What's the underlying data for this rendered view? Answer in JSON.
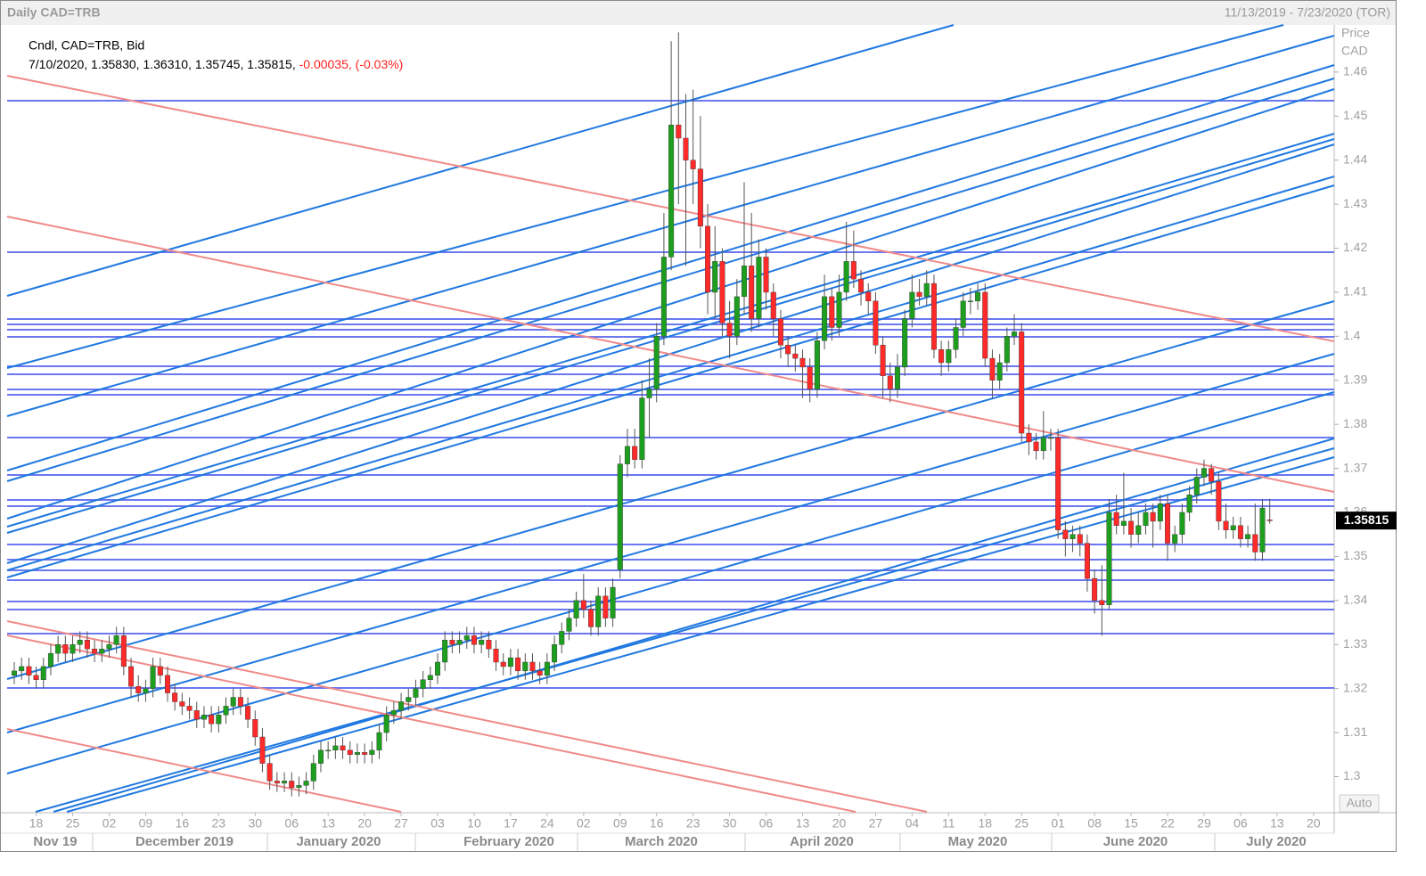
{
  "chart_data": {
    "type": "candlestick",
    "title": "Daily CAD=TRB",
    "date_range": "11/13/2019 - 7/23/2020 (TOR)",
    "legend_label": "Cndl, CAD=TRB, Bid",
    "info_text": "7/10/2020, 1.35830, 1.36310, 1.35745, 1.35815, ",
    "info_change": "-0.00035, (-0.03%)",
    "y_axis_title": "Price",
    "y_axis_unit": "CAD",
    "last_price_label": "1.35815",
    "scale_button": "Auto",
    "up_color": "#1e9e1e",
    "down_color": "#ff2a2a",
    "ylim": [
      1.292,
      1.4707
    ],
    "yticks": [
      1.3,
      1.31,
      1.32,
      1.33,
      1.34,
      1.35,
      1.36,
      1.37,
      1.38,
      1.39,
      1.4,
      1.41,
      1.42,
      1.43,
      1.44,
      1.45,
      1.46
    ],
    "months": [
      "Nov 19",
      "December 2019",
      "January 2020",
      "February 2020",
      "March 2020",
      "April 2020",
      "May 2020",
      "June 2020",
      "July 2020"
    ],
    "categories": [
      null,
      null,
      null,
      "18",
      null,
      null,
      null,
      null,
      "25",
      null,
      null,
      null,
      null,
      "02",
      null,
      null,
      null,
      null,
      "09",
      null,
      null,
      null,
      null,
      "16",
      null,
      null,
      null,
      null,
      "23",
      null,
      null,
      null,
      null,
      "30",
      null,
      null,
      null,
      null,
      "06",
      null,
      null,
      null,
      null,
      "13",
      null,
      null,
      null,
      null,
      "20",
      null,
      null,
      null,
      null,
      "27",
      null,
      null,
      null,
      null,
      "03",
      null,
      null,
      null,
      null,
      "10",
      null,
      null,
      null,
      null,
      "17",
      null,
      null,
      null,
      null,
      "24",
      null,
      null,
      null,
      null,
      "02",
      null,
      null,
      null,
      null,
      "09",
      null,
      null,
      null,
      null,
      "16",
      null,
      null,
      null,
      null,
      "23",
      null,
      null,
      null,
      null,
      "30",
      null,
      null,
      null,
      null,
      "06",
      null,
      null,
      null,
      null,
      "13",
      null,
      null,
      null,
      null,
      "20",
      null,
      null,
      null,
      null,
      "27",
      null,
      null,
      null,
      null,
      "04",
      null,
      null,
      null,
      null,
      "11",
      null,
      null,
      null,
      null,
      "18",
      null,
      null,
      null,
      null,
      "25",
      null,
      null,
      null,
      null,
      "01",
      null,
      null,
      null,
      null,
      "08",
      null,
      null,
      null,
      null,
      "15",
      null,
      null,
      null,
      null,
      "22",
      null,
      null,
      null,
      null,
      "29",
      null,
      null,
      null,
      null,
      "06",
      null,
      null,
      null,
      null,
      "13",
      null,
      null,
      null,
      null,
      "20",
      null,
      null
    ],
    "candles": [
      [
        1.323,
        1.326,
        1.321,
        1.324
      ],
      [
        1.324,
        1.327,
        1.322,
        1.325
      ],
      [
        1.325,
        1.327,
        1.321,
        1.323
      ],
      [
        1.323,
        1.325,
        1.32,
        1.322
      ],
      [
        1.322,
        1.327,
        1.32,
        1.325
      ],
      [
        1.325,
        1.33,
        1.323,
        1.328
      ],
      [
        1.328,
        1.332,
        1.326,
        1.33
      ],
      [
        1.33,
        1.332,
        1.326,
        1.328
      ],
      [
        1.328,
        1.332,
        1.326,
        1.33
      ],
      [
        1.33,
        1.333,
        1.328,
        1.331
      ],
      [
        1.331,
        1.333,
        1.327,
        1.329
      ],
      [
        1.329,
        1.331,
        1.326,
        1.328
      ],
      [
        1.328,
        1.331,
        1.326,
        1.329
      ],
      [
        1.329,
        1.332,
        1.327,
        1.33
      ],
      [
        1.33,
        1.334,
        1.328,
        1.332
      ],
      [
        1.332,
        1.334,
        1.323,
        1.325
      ],
      [
        1.325,
        1.327,
        1.318,
        1.3205
      ],
      [
        1.3205,
        1.323,
        1.317,
        1.319
      ],
      [
        1.319,
        1.322,
        1.317,
        1.32
      ],
      [
        1.32,
        1.327,
        1.318,
        1.325
      ],
      [
        1.325,
        1.327,
        1.321,
        1.323
      ],
      [
        1.323,
        1.325,
        1.317,
        1.319
      ],
      [
        1.319,
        1.321,
        1.315,
        1.317
      ],
      [
        1.317,
        1.319,
        1.314,
        1.316
      ],
      [
        1.316,
        1.318,
        1.313,
        1.315
      ],
      [
        1.315,
        1.317,
        1.311,
        1.313
      ],
      [
        1.313,
        1.316,
        1.311,
        1.314
      ],
      [
        1.314,
        1.316,
        1.31,
        1.312
      ],
      [
        1.312,
        1.316,
        1.31,
        1.314
      ],
      [
        1.314,
        1.318,
        1.312,
        1.316
      ],
      [
        1.316,
        1.32,
        1.314,
        1.318
      ],
      [
        1.318,
        1.32,
        1.314,
        1.316
      ],
      [
        1.316,
        1.318,
        1.311,
        1.313
      ],
      [
        1.313,
        1.315,
        1.307,
        1.309
      ],
      [
        1.309,
        1.311,
        1.301,
        1.303
      ],
      [
        1.303,
        1.305,
        1.297,
        1.299
      ],
      [
        1.299,
        1.301,
        1.2965,
        1.2985
      ],
      [
        1.2985,
        1.301,
        1.2965,
        1.299
      ],
      [
        1.299,
        1.301,
        1.2955,
        1.2975
      ],
      [
        1.2975,
        1.3,
        1.2955,
        1.298
      ],
      [
        1.298,
        1.301,
        1.296,
        1.299
      ],
      [
        1.299,
        1.305,
        1.297,
        1.303
      ],
      [
        1.303,
        1.308,
        1.301,
        1.306
      ],
      [
        1.306,
        1.308,
        1.304,
        1.306
      ],
      [
        1.306,
        1.309,
        1.304,
        1.307
      ],
      [
        1.307,
        1.309,
        1.304,
        1.306
      ],
      [
        1.306,
        1.308,
        1.303,
        1.305
      ],
      [
        1.305,
        1.3075,
        1.303,
        1.3055
      ],
      [
        1.3055,
        1.3075,
        1.303,
        1.305
      ],
      [
        1.305,
        1.308,
        1.303,
        1.306
      ],
      [
        1.306,
        1.312,
        1.304,
        1.31
      ],
      [
        1.31,
        1.316,
        1.308,
        1.314
      ],
      [
        1.314,
        1.317,
        1.312,
        1.315
      ],
      [
        1.315,
        1.319,
        1.313,
        1.317
      ],
      [
        1.317,
        1.32,
        1.315,
        1.318
      ],
      [
        1.318,
        1.322,
        1.316,
        1.32
      ],
      [
        1.32,
        1.324,
        1.318,
        1.322
      ],
      [
        1.322,
        1.325,
        1.32,
        1.323
      ],
      [
        1.323,
        1.328,
        1.321,
        1.326
      ],
      [
        1.326,
        1.333,
        1.324,
        1.331
      ],
      [
        1.331,
        1.333,
        1.328,
        1.33
      ],
      [
        1.33,
        1.333,
        1.328,
        1.331
      ],
      [
        1.331,
        1.334,
        1.329,
        1.332
      ],
      [
        1.332,
        1.334,
        1.328,
        1.33
      ],
      [
        1.33,
        1.333,
        1.328,
        1.331
      ],
      [
        1.331,
        1.333,
        1.327,
        1.329
      ],
      [
        1.329,
        1.331,
        1.324,
        1.326
      ],
      [
        1.326,
        1.328,
        1.323,
        1.325
      ],
      [
        1.325,
        1.329,
        1.323,
        1.327
      ],
      [
        1.327,
        1.329,
        1.322,
        1.324
      ],
      [
        1.324,
        1.328,
        1.322,
        1.326
      ],
      [
        1.326,
        1.328,
        1.322,
        1.324
      ],
      [
        1.324,
        1.326,
        1.321,
        1.323
      ],
      [
        1.323,
        1.328,
        1.321,
        1.326
      ],
      [
        1.326,
        1.332,
        1.324,
        1.33
      ],
      [
        1.33,
        1.335,
        1.328,
        1.333
      ],
      [
        1.333,
        1.338,
        1.331,
        1.336
      ],
      [
        1.336,
        1.342,
        1.334,
        1.34
      ],
      [
        1.34,
        1.346,
        1.336,
        1.338
      ],
      [
        1.338,
        1.34,
        1.332,
        1.334
      ],
      [
        1.334,
        1.343,
        1.332,
        1.341
      ],
      [
        1.341,
        1.343,
        1.334,
        1.336
      ],
      [
        1.336,
        1.345,
        1.334,
        1.343
      ],
      [
        1.347,
        1.373,
        1.345,
        1.371
      ],
      [
        1.371,
        1.379,
        1.368,
        1.375
      ],
      [
        1.375,
        1.379,
        1.37,
        1.372
      ],
      [
        1.372,
        1.39,
        1.37,
        1.386
      ],
      [
        1.386,
        1.395,
        1.377,
        1.388
      ],
      [
        1.388,
        1.403,
        1.385,
        1.4
      ],
      [
        1.4,
        1.428,
        1.398,
        1.418
      ],
      [
        1.418,
        1.467,
        1.415,
        1.448
      ],
      [
        1.448,
        1.469,
        1.43,
        1.445
      ],
      [
        1.445,
        1.455,
        1.416,
        1.44
      ],
      [
        1.44,
        1.456,
        1.43,
        1.438
      ],
      [
        1.438,
        1.45,
        1.42,
        1.425
      ],
      [
        1.425,
        1.43,
        1.405,
        1.41
      ],
      [
        1.41,
        1.425,
        1.404,
        1.417
      ],
      [
        1.417,
        1.42,
        1.4,
        1.403
      ],
      [
        1.403,
        1.408,
        1.395,
        1.4
      ],
      [
        1.4,
        1.413,
        1.398,
        1.409
      ],
      [
        1.409,
        1.435,
        1.405,
        1.416
      ],
      [
        1.416,
        1.428,
        1.401,
        1.404
      ],
      [
        1.404,
        1.422,
        1.402,
        1.418
      ],
      [
        1.418,
        1.42,
        1.406,
        1.41
      ],
      [
        1.41,
        1.412,
        1.4,
        1.404
      ],
      [
        1.404,
        1.406,
        1.395,
        1.398
      ],
      [
        1.398,
        1.4,
        1.393,
        1.396
      ],
      [
        1.396,
        1.398,
        1.392,
        1.395
      ],
      [
        1.395,
        1.397,
        1.386,
        1.393
      ],
      [
        1.393,
        1.395,
        1.385,
        1.388
      ],
      [
        1.388,
        1.401,
        1.386,
        1.399
      ],
      [
        1.399,
        1.414,
        1.397,
        1.409
      ],
      [
        1.409,
        1.411,
        1.399,
        1.402
      ],
      [
        1.402,
        1.414,
        1.4,
        1.41
      ],
      [
        1.41,
        1.426,
        1.408,
        1.417
      ],
      [
        1.417,
        1.424,
        1.411,
        1.413
      ],
      [
        1.413,
        1.415,
        1.407,
        1.41
      ],
      [
        1.41,
        1.412,
        1.405,
        1.408
      ],
      [
        1.408,
        1.41,
        1.396,
        1.398
      ],
      [
        1.398,
        1.4,
        1.386,
        1.391
      ],
      [
        1.391,
        1.394,
        1.385,
        1.388
      ],
      [
        1.388,
        1.396,
        1.386,
        1.393
      ],
      [
        1.393,
        1.406,
        1.391,
        1.404
      ],
      [
        1.404,
        1.414,
        1.402,
        1.41
      ],
      [
        1.41,
        1.413,
        1.407,
        1.409
      ],
      [
        1.409,
        1.415,
        1.407,
        1.412
      ],
      [
        1.412,
        1.414,
        1.395,
        1.397
      ],
      [
        1.397,
        1.399,
        1.391,
        1.394
      ],
      [
        1.394,
        1.399,
        1.392,
        1.397
      ],
      [
        1.397,
        1.404,
        1.395,
        1.402
      ],
      [
        1.402,
        1.41,
        1.4,
        1.408
      ],
      [
        1.408,
        1.411,
        1.405,
        1.408
      ],
      [
        1.408,
        1.412,
        1.406,
        1.41
      ],
      [
        1.41,
        1.412,
        1.393,
        1.395
      ],
      [
        1.395,
        1.397,
        1.386,
        1.39
      ],
      [
        1.39,
        1.396,
        1.388,
        1.394
      ],
      [
        1.394,
        1.402,
        1.392,
        1.4
      ],
      [
        1.4,
        1.405,
        1.398,
        1.401
      ],
      [
        1.401,
        1.403,
        1.376,
        1.378
      ],
      [
        1.378,
        1.38,
        1.373,
        1.376
      ],
      [
        1.376,
        1.378,
        1.372,
        1.374
      ],
      [
        1.374,
        1.383,
        1.372,
        1.377
      ],
      [
        1.377,
        1.379,
        1.374,
        1.377
      ],
      [
        1.377,
        1.379,
        1.354,
        1.356
      ],
      [
        1.356,
        1.358,
        1.35,
        1.354
      ],
      [
        1.354,
        1.357,
        1.351,
        1.355
      ],
      [
        1.355,
        1.357,
        1.35,
        1.353
      ],
      [
        1.353,
        1.355,
        1.342,
        1.345
      ],
      [
        1.345,
        1.347,
        1.337,
        1.34
      ],
      [
        1.34,
        1.348,
        1.332,
        1.339
      ],
      [
        1.339,
        1.363,
        1.338,
        1.36
      ],
      [
        1.36,
        1.364,
        1.355,
        1.357
      ],
      [
        1.357,
        1.369,
        1.355,
        1.358
      ],
      [
        1.358,
        1.361,
        1.352,
        1.355
      ],
      [
        1.355,
        1.36,
        1.353,
        1.357
      ],
      [
        1.357,
        1.362,
        1.355,
        1.36
      ],
      [
        1.36,
        1.362,
        1.352,
        1.358
      ],
      [
        1.358,
        1.364,
        1.356,
        1.362
      ],
      [
        1.362,
        1.364,
        1.349,
        1.353
      ],
      [
        1.353,
        1.357,
        1.351,
        1.355
      ],
      [
        1.355,
        1.362,
        1.353,
        1.36
      ],
      [
        1.36,
        1.366,
        1.358,
        1.364
      ],
      [
        1.364,
        1.37,
        1.362,
        1.368
      ],
      [
        1.368,
        1.372,
        1.366,
        1.37
      ],
      [
        1.37,
        1.371,
        1.364,
        1.367
      ],
      [
        1.367,
        1.369,
        1.356,
        1.358
      ],
      [
        1.358,
        1.362,
        1.354,
        1.356
      ],
      [
        1.356,
        1.359,
        1.354,
        1.357
      ],
      [
        1.357,
        1.359,
        1.352,
        1.354
      ],
      [
        1.354,
        1.357,
        1.352,
        1.355
      ],
      [
        1.355,
        1.362,
        1.349,
        1.351
      ],
      [
        1.351,
        1.363,
        1.349,
        1.361
      ],
      [
        1.3583,
        1.3631,
        1.35745,
        1.35815
      ],
      null,
      null,
      null,
      null,
      null,
      null,
      null,
      null
    ]
  }
}
